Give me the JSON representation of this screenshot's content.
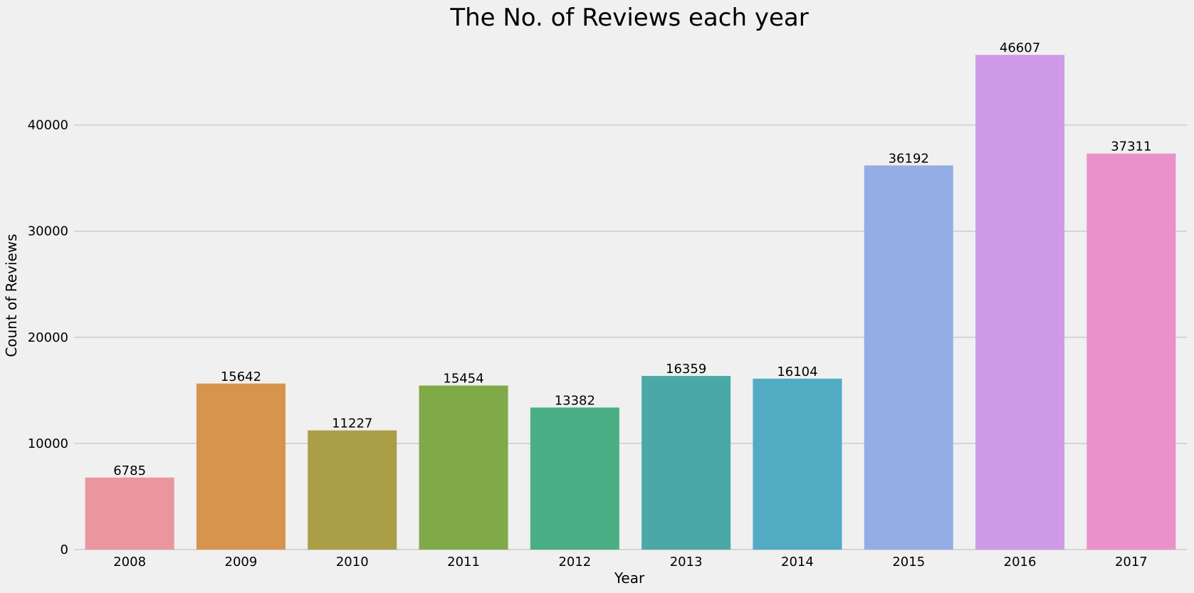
{
  "chart_data": {
    "type": "bar",
    "title": "The No. of Reviews each year",
    "xlabel": "Year",
    "ylabel": "Count of Reviews",
    "categories": [
      "2008",
      "2009",
      "2010",
      "2011",
      "2012",
      "2013",
      "2014",
      "2015",
      "2016",
      "2017"
    ],
    "values": [
      6785,
      15642,
      11227,
      15454,
      13382,
      16359,
      16104,
      36192,
      46607,
      37311
    ],
    "data_labels": [
      "6785",
      "15642",
      "11227",
      "15454",
      "13382",
      "16359",
      "16104",
      "36192",
      "46607",
      "37311"
    ],
    "colors": [
      "#eb969f",
      "#d6944d",
      "#aa9e47",
      "#80a948",
      "#4aaf85",
      "#4aa9a7",
      "#50abc3",
      "#94aee5",
      "#cf9be8",
      "#ea91cb"
    ],
    "y_ticks": [
      0,
      10000,
      20000,
      30000,
      40000
    ],
    "y_tick_labels": [
      "0",
      "10000",
      "20000",
      "30000",
      "40000"
    ],
    "ylim": [
      0,
      48937
    ],
    "grid": true,
    "legend": "none",
    "background": "#f0f0f0",
    "grid_color": "#cbcbcb"
  }
}
